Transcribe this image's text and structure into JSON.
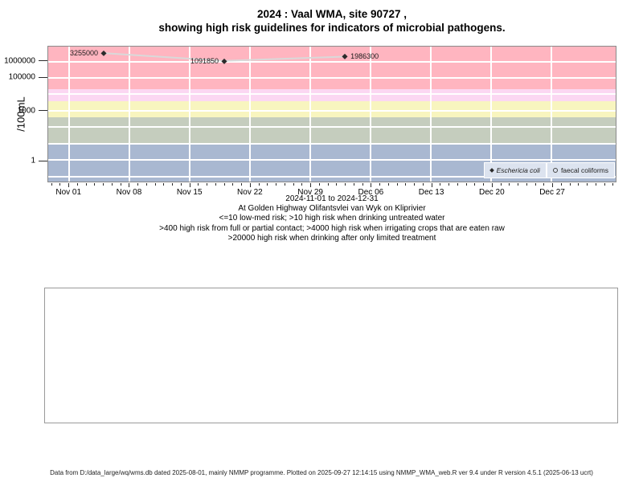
{
  "title": {
    "line1": "2024 : Vaal WMA, site 90727 ,",
    "line2": "showing high risk guidelines for indicators of microbial pathogens."
  },
  "captions": [
    "2024-11-01 to 2024-12-31",
    "At Golden Highway Olifantsvlei van Wyk on Kliprivier",
    "<=10 low-med risk; >10 high risk when drinking untreated water",
    ">400 high risk from full or partial contact; >4000 high risk when irrigating crops that are eaten raw",
    ">20000 high risk when drinking after only limited treatment"
  ],
  "legend": {
    "items": [
      {
        "label": "Eschericia coli",
        "marker": "filled-diamond",
        "italic": true
      },
      {
        "label": "faecal coliforms",
        "marker": "open-circle",
        "italic": false
      }
    ],
    "box_color": "#dce3ef"
  },
  "footer": "Data from D:/data_large/wq/wms.db dated 2025-08-01, mainly NMMP programme. Plotted on 2025-09-27 12:14:15 using NMMP_WMA_web.R ver 9.4 under R version 4.5.1 (2025-06-13 ucrt)",
  "chart_data": {
    "type": "line",
    "title": "2024 : Vaal WMA, site 90727 , showing high risk guidelines for indicators of microbial pathogens.",
    "ylabel": "/100mL",
    "xlabel": "2024-11-01 to 2024-12-31",
    "y_axis": {
      "scale": "log10",
      "top_log10": 6.908,
      "bottom_log10": -1.304,
      "ticks": [
        {
          "label": "1000000",
          "log10": 6
        },
        {
          "label": "100000",
          "log10": 5
        },
        {
          "label": "1000",
          "log10": 3
        },
        {
          "label": "1",
          "log10": 0
        }
      ],
      "grid_exponents": [
        -1,
        0,
        1,
        2,
        3,
        4,
        5,
        6
      ]
    },
    "x_axis": {
      "min_day": -2.44,
      "max_day": 63.44,
      "major_tick_days": [
        0,
        7,
        14,
        21,
        28,
        35,
        42,
        49,
        56
      ],
      "major_tick_labels": [
        "Nov 01",
        "Nov 08",
        "Nov 15",
        "Nov 22",
        "Nov 29",
        "Dec 06",
        "Dec 13",
        "Dec 20",
        "Dec 27"
      ],
      "minor_tick_start_day": -2,
      "minor_tick_end_day": 63,
      "grid_days": [
        0,
        7,
        14,
        21,
        28,
        35,
        42,
        49,
        56
      ]
    },
    "bands": [
      {
        "label": ">20000 high risk when drinking after only limited treatment",
        "from_log10": 4.301,
        "to_log10": 6.908,
        "color": "#ffb5c0"
      },
      {
        "label": "4000-20000 high risk when irrigating crops that are eaten raw",
        "from_log10": 3.602,
        "to_log10": 4.301,
        "color": "#fbd7f2"
      },
      {
        "label": "400-4000 high risk from full or partial contact",
        "from_log10": 2.602,
        "to_log10": 3.602,
        "color": "#f8f5bf"
      },
      {
        "label": "10-400 high risk when drinking untreated water",
        "from_log10": 1.0,
        "to_log10": 2.602,
        "color": "#c5cdbe"
      },
      {
        "label": "<=10 low-med risk",
        "from_log10": -1.304,
        "to_log10": 1.0,
        "color": "#a9b8d1"
      }
    ],
    "series": [
      {
        "name": "Eschericia coli",
        "marker": "filled-diamond",
        "line_color": "#d9d9d9",
        "points": [
          {
            "day": 4,
            "value": 3255000,
            "label": "3255000",
            "label_side": "left"
          },
          {
            "day": 18,
            "value": 1091850,
            "label": "1091850",
            "label_side": "left"
          },
          {
            "day": 32,
            "value": 1986300,
            "label": "1986300",
            "label_side": "right"
          }
        ]
      },
      {
        "name": "faecal coliforms",
        "marker": "open-circle",
        "points": []
      }
    ],
    "gridline_color": "#ffffff",
    "legend_position": "bottom-right-inside"
  }
}
